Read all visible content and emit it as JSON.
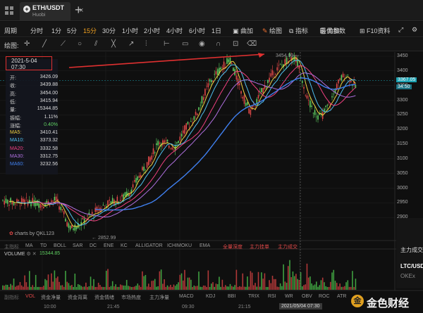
{
  "tab": {
    "title": "ETH/USDT",
    "subtitle": "Huobi",
    "close": "×",
    "add": "+"
  },
  "periods": [
    "周期",
    "分时",
    "1分",
    "5分",
    "15分",
    "30分",
    "1小时",
    "2小时",
    "4小时",
    "6小时",
    "1日"
  ],
  "active_period": "15分",
  "toolbar_right": {
    "draw_more": "曲加",
    "draw": "绘图",
    "indicator": "指标",
    "params": "最优参数",
    "f10": "F10资料"
  },
  "drawbar_label": "绘图:",
  "info": {
    "date": "2021-5-04 07:30",
    "rows": [
      {
        "k": "开:",
        "v": "3426.09",
        "kc": "#c8c8c8",
        "vc": "#ddd"
      },
      {
        "k": "收:",
        "v": "3439.88",
        "kc": "#c8c8c8",
        "vc": "#ddd"
      },
      {
        "k": "高:",
        "v": "3454.00",
        "kc": "#c8c8c8",
        "vc": "#ddd"
      },
      {
        "k": "低:",
        "v": "3415.94",
        "kc": "#c8c8c8",
        "vc": "#ddd"
      },
      {
        "k": "量:",
        "v": "15344.85",
        "kc": "#c8c8c8",
        "vc": "#ddd"
      },
      {
        "k": "振幅:",
        "v": "1.11%",
        "kc": "#c8c8c8",
        "vc": "#ddd"
      },
      {
        "k": "涨幅:",
        "v": "0.40%",
        "kc": "#c8c8c8",
        "vc": "#5fcf60"
      },
      {
        "k": "MA5:",
        "v": "3410.41",
        "kc": "#f0d040",
        "vc": "#ddd"
      },
      {
        "k": "MA10:",
        "v": "3373.32",
        "kc": "#50c0f0",
        "vc": "#ddd"
      },
      {
        "k": "MA20:",
        "v": "3332.58",
        "kc": "#f04080",
        "vc": "#ddd"
      },
      {
        "k": "MA30:",
        "v": "3312.75",
        "kc": "#b070e0",
        "vc": "#ddd"
      },
      {
        "k": "MA60:",
        "v": "3232.56",
        "kc": "#4080f0",
        "vc": "#ddd"
      }
    ]
  },
  "high_marker": "3454.00",
  "low_marker": "2852.99",
  "current_price": "3367.05",
  "current_tag2": "34:50",
  "price_axis": [
    "3450",
    "3400",
    "3350",
    "3300",
    "3250",
    "3200",
    "3150",
    "3100",
    "3050",
    "3000",
    "2950",
    "2900"
  ],
  "watermark": "charts by QKL123",
  "indicator_tabs": [
    "主指标",
    "MA",
    "TD",
    "BOLL",
    "SAR",
    "DC",
    "ENE",
    "KC",
    "ALLIGATOR",
    "ICHIMOKU",
    "EMA",
    "全量深度",
    "主力挂单",
    "主力成交"
  ],
  "volume": {
    "label": "VOLUME",
    "value": "15344.85"
  },
  "bottom_tabs": [
    "副指标",
    "VOL",
    "资金净量",
    "资金背离",
    "资金情绪",
    "市场热度",
    "主力净量",
    "MACD",
    "KDJ",
    "BBI",
    "TRIX",
    "RSI",
    "WR",
    "OBV",
    "ROC",
    "ATR"
  ],
  "time_axis": [
    "10:00",
    "21:45",
    "09:30",
    "21:15",
    "2021/05/04 07:30"
  ],
  "right_panel": {
    "a": "主力成交",
    "b": "LTC/USDT",
    "c": "OKEx"
  },
  "brand": {
    "logo": "金",
    "name": "金色财经"
  },
  "colors": {
    "up": "#5fcf60",
    "down": "#e04848",
    "accent": "#f0a020",
    "annotation": "#e03030"
  }
}
